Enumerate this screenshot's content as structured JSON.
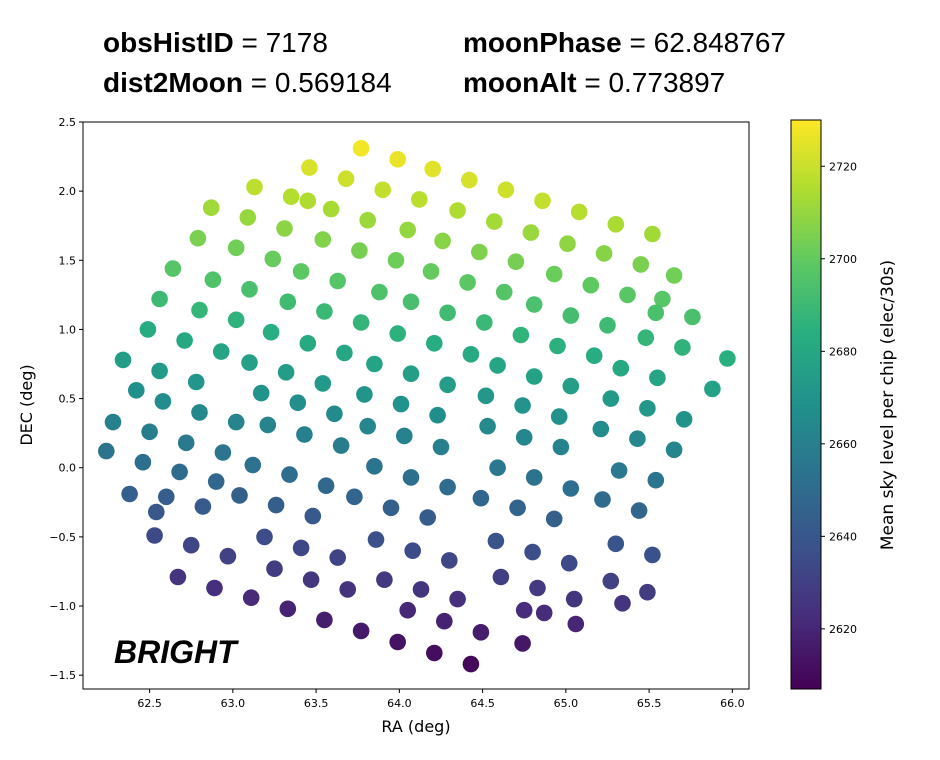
{
  "header": {
    "obs_label": "obsHistID",
    "obs_value": "= 7178",
    "dist_label": "dist2Moon",
    "dist_value": "= 0.569184",
    "phase_label": "moonPhase",
    "phase_value": "= 62.848767",
    "alt_label": "moonAlt",
    "alt_value": "= 0.773897"
  },
  "chart_data": {
    "type": "scatter",
    "annotation": "BRIGHT",
    "xlabel": "RA (deg)",
    "ylabel": "DEC (deg)",
    "xlim": [
      62.1,
      66.1
    ],
    "ylim": [
      -1.6,
      2.5
    ],
    "xticks": [
      "62.5",
      "63.0",
      "63.5",
      "64.0",
      "64.5",
      "65.0",
      "65.5",
      "66.0"
    ],
    "yticks": [
      "−1.5",
      "−1.0",
      "−0.5",
      "0.0",
      "0.5",
      "1.0",
      "1.5",
      "2.0",
      "2.5"
    ],
    "colorbar": {
      "label": "Mean sky level per chip (elec/30s)",
      "range": [
        2607,
        2730
      ],
      "ticks": [
        "2620",
        "2640",
        "2660",
        "2680",
        "2700",
        "2720"
      ],
      "colormap": "viridis"
    },
    "series": [
      {
        "points": [
          [
            63.77,
            2.31
          ],
          [
            63.99,
            2.23
          ],
          [
            64.2,
            2.16
          ],
          [
            63.46,
            2.17
          ],
          [
            63.68,
            2.09
          ],
          [
            64.42,
            2.08
          ],
          [
            64.64,
            2.01
          ],
          [
            63.13,
            2.03
          ],
          [
            63.35,
            1.96
          ],
          [
            63.9,
            2.01
          ],
          [
            64.12,
            1.94
          ],
          [
            64.86,
            1.93
          ],
          [
            65.08,
            1.85
          ],
          [
            63.45,
            1.93
          ],
          [
            62.87,
            1.88
          ],
          [
            63.09,
            1.81
          ],
          [
            63.31,
            1.73
          ],
          [
            63.59,
            1.87
          ],
          [
            63.81,
            1.79
          ],
          [
            64.05,
            1.72
          ],
          [
            64.35,
            1.86
          ],
          [
            64.57,
            1.78
          ],
          [
            64.79,
            1.7
          ],
          [
            65.3,
            1.76
          ],
          [
            65.52,
            1.69
          ],
          [
            62.79,
            1.66
          ],
          [
            63.02,
            1.59
          ],
          [
            63.24,
            1.51
          ],
          [
            63.54,
            1.65
          ],
          [
            63.76,
            1.57
          ],
          [
            63.98,
            1.5
          ],
          [
            64.26,
            1.64
          ],
          [
            64.48,
            1.56
          ],
          [
            64.7,
            1.49
          ],
          [
            65.01,
            1.62
          ],
          [
            65.23,
            1.55
          ],
          [
            65.45,
            1.47
          ],
          [
            62.64,
            1.44
          ],
          [
            62.88,
            1.36
          ],
          [
            63.1,
            1.29
          ],
          [
            63.41,
            1.42
          ],
          [
            63.63,
            1.35
          ],
          [
            63.88,
            1.27
          ],
          [
            64.19,
            1.42
          ],
          [
            64.41,
            1.34
          ],
          [
            64.63,
            1.27
          ],
          [
            64.93,
            1.4
          ],
          [
            65.15,
            1.32
          ],
          [
            65.37,
            1.25
          ],
          [
            65.65,
            1.39
          ],
          [
            65.58,
            1.22
          ],
          [
            62.56,
            1.22
          ],
          [
            62.8,
            1.14
          ],
          [
            63.02,
            1.07
          ],
          [
            63.33,
            1.2
          ],
          [
            63.55,
            1.13
          ],
          [
            63.77,
            1.05
          ],
          [
            64.07,
            1.2
          ],
          [
            64.29,
            1.12
          ],
          [
            64.51,
            1.05
          ],
          [
            64.81,
            1.18
          ],
          [
            65.03,
            1.1
          ],
          [
            65.25,
            1.03
          ],
          [
            65.54,
            1.12
          ],
          [
            65.76,
            1.09
          ],
          [
            62.49,
            1.0
          ],
          [
            62.71,
            0.92
          ],
          [
            62.93,
            0.84
          ],
          [
            63.23,
            0.98
          ],
          [
            63.45,
            0.9
          ],
          [
            63.67,
            0.83
          ],
          [
            63.99,
            0.97
          ],
          [
            64.21,
            0.9
          ],
          [
            64.43,
            0.82
          ],
          [
            64.73,
            0.96
          ],
          [
            64.95,
            0.88
          ],
          [
            65.17,
            0.81
          ],
          [
            65.48,
            0.94
          ],
          [
            65.7,
            0.87
          ],
          [
            65.97,
            0.79
          ],
          [
            62.34,
            0.78
          ],
          [
            62.56,
            0.7
          ],
          [
            62.78,
            0.62
          ],
          [
            63.1,
            0.76
          ],
          [
            63.32,
            0.69
          ],
          [
            63.54,
            0.61
          ],
          [
            63.85,
            0.75
          ],
          [
            64.07,
            0.68
          ],
          [
            64.29,
            0.6
          ],
          [
            64.59,
            0.74
          ],
          [
            64.81,
            0.66
          ],
          [
            65.03,
            0.59
          ],
          [
            65.33,
            0.72
          ],
          [
            65.55,
            0.65
          ],
          [
            65.88,
            0.57
          ],
          [
            62.42,
            0.56
          ],
          [
            62.58,
            0.48
          ],
          [
            62.8,
            0.4
          ],
          [
            63.02,
            0.33
          ],
          [
            63.17,
            0.54
          ],
          [
            63.39,
            0.47
          ],
          [
            63.61,
            0.39
          ],
          [
            63.79,
            0.53
          ],
          [
            64.01,
            0.46
          ],
          [
            64.23,
            0.38
          ],
          [
            64.52,
            0.52
          ],
          [
            64.74,
            0.45
          ],
          [
            64.96,
            0.37
          ],
          [
            65.27,
            0.5
          ],
          [
            65.49,
            0.43
          ],
          [
            65.71,
            0.35
          ],
          [
            62.28,
            0.33
          ],
          [
            62.5,
            0.26
          ],
          [
            62.72,
            0.18
          ],
          [
            62.94,
            0.11
          ],
          [
            63.21,
            0.31
          ],
          [
            63.43,
            0.24
          ],
          [
            63.65,
            0.16
          ],
          [
            63.81,
            0.3
          ],
          [
            64.03,
            0.23
          ],
          [
            64.25,
            0.15
          ],
          [
            64.53,
            0.3
          ],
          [
            64.75,
            0.22
          ],
          [
            64.97,
            0.15
          ],
          [
            65.21,
            0.28
          ],
          [
            65.43,
            0.21
          ],
          [
            65.65,
            0.13
          ],
          [
            62.24,
            0.12
          ],
          [
            62.46,
            0.04
          ],
          [
            62.68,
            -0.03
          ],
          [
            62.9,
            -0.1
          ],
          [
            63.12,
            0.02
          ],
          [
            63.34,
            -0.05
          ],
          [
            63.56,
            -0.13
          ],
          [
            63.85,
            0.01
          ],
          [
            64.07,
            -0.07
          ],
          [
            64.29,
            -0.14
          ],
          [
            64.59,
            0.0
          ],
          [
            64.81,
            -0.07
          ],
          [
            65.03,
            -0.15
          ],
          [
            65.32,
            -0.02
          ],
          [
            65.54,
            -0.09
          ],
          [
            62.38,
            -0.19
          ],
          [
            62.6,
            -0.21
          ],
          [
            62.82,
            -0.28
          ],
          [
            63.04,
            -0.2
          ],
          [
            63.26,
            -0.27
          ],
          [
            63.48,
            -0.35
          ],
          [
            63.73,
            -0.21
          ],
          [
            63.95,
            -0.29
          ],
          [
            64.17,
            -0.36
          ],
          [
            64.49,
            -0.22
          ],
          [
            64.71,
            -0.29
          ],
          [
            64.93,
            -0.37
          ],
          [
            65.22,
            -0.23
          ],
          [
            65.44,
            -0.31
          ],
          [
            62.54,
            -0.32
          ],
          [
            62.53,
            -0.49
          ],
          [
            62.75,
            -0.56
          ],
          [
            62.97,
            -0.64
          ],
          [
            63.19,
            -0.5
          ],
          [
            63.41,
            -0.58
          ],
          [
            63.63,
            -0.65
          ],
          [
            63.86,
            -0.52
          ],
          [
            64.08,
            -0.6
          ],
          [
            64.3,
            -0.67
          ],
          [
            64.58,
            -0.53
          ],
          [
            64.8,
            -0.61
          ],
          [
            65.02,
            -0.69
          ],
          [
            65.3,
            -0.55
          ],
          [
            65.52,
            -0.63
          ],
          [
            62.67,
            -0.79
          ],
          [
            62.89,
            -0.87
          ],
          [
            63.11,
            -0.94
          ],
          [
            63.25,
            -0.73
          ],
          [
            63.47,
            -0.81
          ],
          [
            63.69,
            -0.88
          ],
          [
            63.91,
            -0.81
          ],
          [
            64.13,
            -0.88
          ],
          [
            64.35,
            -0.95
          ],
          [
            64.61,
            -0.79
          ],
          [
            64.83,
            -0.87
          ],
          [
            65.05,
            -0.95
          ],
          [
            65.27,
            -0.82
          ],
          [
            65.49,
            -0.9
          ],
          [
            63.33,
            -1.02
          ],
          [
            63.55,
            -1.1
          ],
          [
            63.77,
            -1.18
          ],
          [
            64.05,
            -1.03
          ],
          [
            64.27,
            -1.11
          ],
          [
            64.49,
            -1.19
          ],
          [
            64.75,
            -1.03
          ],
          [
            64.87,
            -1.05
          ],
          [
            65.06,
            -1.13
          ],
          [
            63.99,
            -1.26
          ],
          [
            64.21,
            -1.34
          ],
          [
            64.43,
            -1.42
          ],
          [
            64.74,
            -1.27
          ],
          [
            65.34,
            -0.98
          ]
        ]
      }
    ]
  }
}
